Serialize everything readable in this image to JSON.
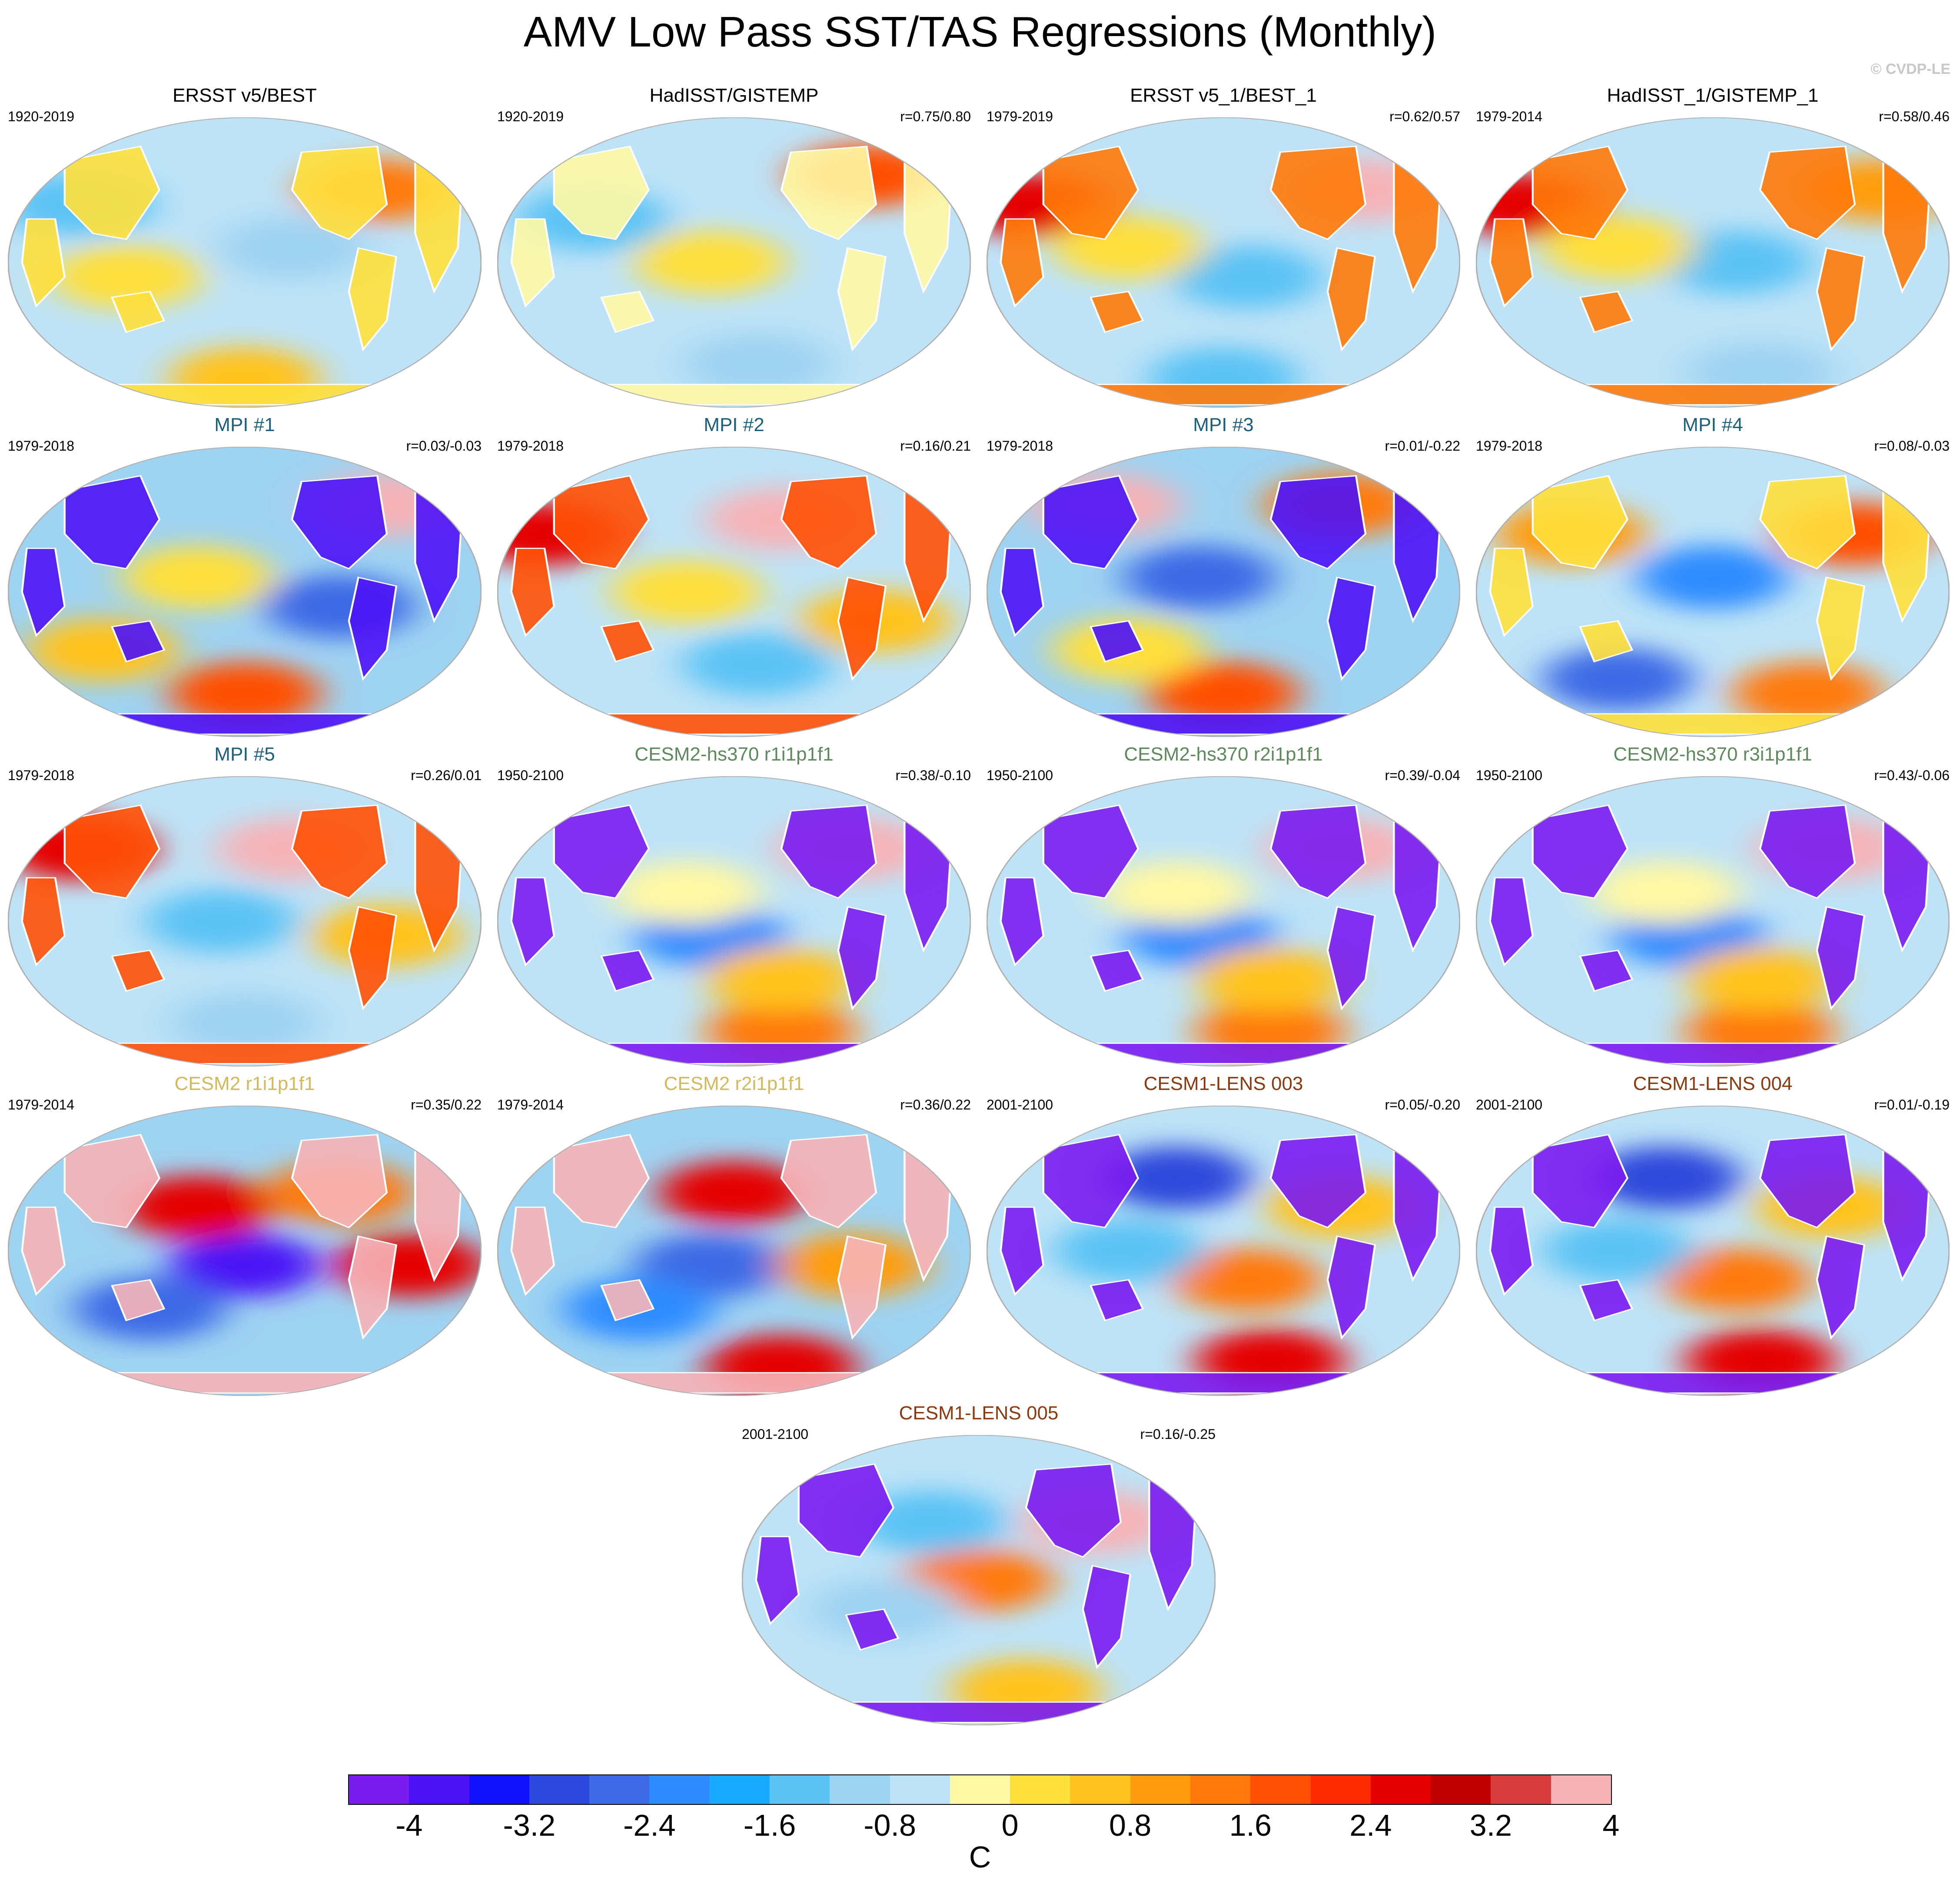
{
  "title": "AMV Low Pass SST/TAS Regressions (Monthly)",
  "copyright": "© CVDP-LE",
  "palette": [
    "#7a1bef",
    "#4c12f6",
    "#1010fa",
    "#2d48dc",
    "#3e6ae6",
    "#2f8cff",
    "#17aaff",
    "#5cc3f5",
    "#9fd3f2",
    "#bee3f7",
    "#fff8a4",
    "#ffe03c",
    "#ffc31f",
    "#ff9d0f",
    "#ff7a0a",
    "#ff5005",
    "#ff2c00",
    "#e50000",
    "#c00000",
    "#d83c3c",
    "#f6b4b8"
  ],
  "colorbar": {
    "ticks": [
      "-4",
      "-3.2",
      "-2.4",
      "-1.6",
      "-0.8",
      "0",
      "0.8",
      "1.6",
      "2.4",
      "3.2",
      "4"
    ],
    "units": "C"
  },
  "panels": [
    {
      "title": "ERSST v5/BEST",
      "period": "1920-2019",
      "corr": "",
      "title_color": "#000000",
      "ocean": "#bee3f7",
      "land": "#ffe03c",
      "blobs": [
        [
          0.25,
          0.55,
          "#ffe03c"
        ],
        [
          0.78,
          0.25,
          "#ff7a0a"
        ],
        [
          0.6,
          0.45,
          "#9fd3f2"
        ],
        [
          0.15,
          0.3,
          "#5cc3f5"
        ],
        [
          0.5,
          0.9,
          "#ffc31f"
        ]
      ]
    },
    {
      "title": "HadISST/GISTEMP",
      "period": "1920-2019",
      "corr": "r=0.75/0.80",
      "title_color": "#000000",
      "ocean": "#bee3f7",
      "land": "#fff8a4",
      "blobs": [
        [
          0.45,
          0.5,
          "#ffe03c"
        ],
        [
          0.78,
          0.2,
          "#ff5005"
        ],
        [
          0.2,
          0.35,
          "#5cc3f5"
        ],
        [
          0.55,
          0.85,
          "#9fd3f2"
        ]
      ]
    },
    {
      "title": "ERSST v5_1/BEST_1",
      "period": "1979-2019",
      "corr": "r=0.62/0.57",
      "title_color": "#000000",
      "ocean": "#bee3f7",
      "land": "#ff7a0a",
      "blobs": [
        [
          0.1,
          0.3,
          "#e50000"
        ],
        [
          0.55,
          0.55,
          "#5cc3f5"
        ],
        [
          0.8,
          0.25,
          "#f6b4b8"
        ],
        [
          0.3,
          0.45,
          "#ffe03c"
        ],
        [
          0.5,
          0.9,
          "#5cc3f5"
        ]
      ]
    },
    {
      "title": "HadISST_1/GISTEMP_1",
      "period": "1979-2014",
      "corr": "r=0.58/0.46",
      "title_color": "#000000",
      "ocean": "#bee3f7",
      "land": "#ff7a0a",
      "blobs": [
        [
          0.1,
          0.3,
          "#e50000"
        ],
        [
          0.55,
          0.5,
          "#5cc3f5"
        ],
        [
          0.85,
          0.25,
          "#ff9d0f"
        ],
        [
          0.3,
          0.45,
          "#ffe03c"
        ],
        [
          0.6,
          0.88,
          "#9fd3f2"
        ]
      ]
    },
    {
      "title": "MPI #1",
      "period": "1979-2018",
      "corr": "r=0.03/-0.03",
      "title_color": "#1c5f7c",
      "ocean": "#9fd3f2",
      "land": "#4c12f6",
      "blobs": [
        [
          0.4,
          0.45,
          "#ffe03c"
        ],
        [
          0.5,
          0.85,
          "#ff5005"
        ],
        [
          0.8,
          0.2,
          "#f6b4b8"
        ],
        [
          0.7,
          0.55,
          "#3e6ae6"
        ],
        [
          0.2,
          0.7,
          "#ffc31f"
        ]
      ]
    },
    {
      "title": "MPI #2",
      "period": "1979-2018",
      "corr": "r=0.16/0.21",
      "title_color": "#1c5f7c",
      "ocean": "#bee3f7",
      "land": "#ff5005",
      "blobs": [
        [
          0.6,
          0.25,
          "#f6b4b8"
        ],
        [
          0.1,
          0.3,
          "#e50000"
        ],
        [
          0.4,
          0.5,
          "#ffe03c"
        ],
        [
          0.55,
          0.75,
          "#5cc3f5"
        ],
        [
          0.8,
          0.6,
          "#ffc31f"
        ]
      ]
    },
    {
      "title": "MPI #3",
      "period": "1979-2018",
      "corr": "r=0.01/-0.22",
      "title_color": "#1c5f7c",
      "ocean": "#9fd3f2",
      "land": "#4c12f6",
      "blobs": [
        [
          0.25,
          0.2,
          "#f6b4b8"
        ],
        [
          0.45,
          0.45,
          "#3e6ae6"
        ],
        [
          0.5,
          0.85,
          "#ff5005"
        ],
        [
          0.75,
          0.2,
          "#ff7a0a"
        ],
        [
          0.3,
          0.7,
          "#ffe03c"
        ]
      ]
    },
    {
      "title": "MPI #4",
      "period": "1979-2018",
      "corr": "r=0.08/-0.03",
      "title_color": "#1c5f7c",
      "ocean": "#bee3f7",
      "land": "#ffe03c",
      "blobs": [
        [
          0.5,
          0.45,
          "#2f8cff"
        ],
        [
          0.2,
          0.3,
          "#ff9d0f"
        ],
        [
          0.7,
          0.85,
          "#ff7a0a"
        ],
        [
          0.8,
          0.3,
          "#ff5005"
        ],
        [
          0.3,
          0.8,
          "#3e6ae6"
        ]
      ]
    },
    {
      "title": "MPI #5",
      "period": "1979-2018",
      "corr": "r=0.26/0.01",
      "title_color": "#1c5f7c",
      "ocean": "#bee3f7",
      "land": "#ff5005",
      "blobs": [
        [
          0.15,
          0.25,
          "#e50000"
        ],
        [
          0.6,
          0.25,
          "#f6b4b8"
        ],
        [
          0.45,
          0.5,
          "#5cc3f5"
        ],
        [
          0.8,
          0.55,
          "#ffc31f"
        ],
        [
          0.5,
          0.85,
          "#9fd3f2"
        ]
      ]
    },
    {
      "title": "CESM2-hs370 r1i1p1f1",
      "period": "1950-2100",
      "corr": "r=0.38/-0.10",
      "title_color": "#5c8a5c",
      "ocean": "#bee3f7",
      "land": "#7a1bef",
      "blobs": [
        [
          0.45,
          0.55,
          "#2f8cff"
        ],
        [
          0.4,
          0.4,
          "#fff8a4"
        ],
        [
          0.6,
          0.88,
          "#ff7a0a"
        ],
        [
          0.75,
          0.25,
          "#f6b4b8"
        ],
        [
          0.6,
          0.7,
          "#ffc31f"
        ]
      ]
    },
    {
      "title": "CESM2-hs370 r2i1p1f1",
      "period": "1950-2100",
      "corr": "r=0.39/-0.04",
      "title_color": "#5c8a5c",
      "ocean": "#bee3f7",
      "land": "#7a1bef",
      "blobs": [
        [
          0.45,
          0.55,
          "#2f8cff"
        ],
        [
          0.4,
          0.4,
          "#fff8a4"
        ],
        [
          0.6,
          0.88,
          "#ff7a0a"
        ],
        [
          0.75,
          0.25,
          "#f6b4b8"
        ],
        [
          0.6,
          0.7,
          "#ffc31f"
        ]
      ]
    },
    {
      "title": "CESM2-hs370 r3i1p1f1",
      "period": "1950-2100",
      "corr": "r=0.43/-0.06",
      "title_color": "#5c8a5c",
      "ocean": "#bee3f7",
      "land": "#7a1bef",
      "blobs": [
        [
          0.45,
          0.55,
          "#2f8cff"
        ],
        [
          0.4,
          0.4,
          "#fff8a4"
        ],
        [
          0.6,
          0.88,
          "#ff7a0a"
        ],
        [
          0.75,
          0.25,
          "#f6b4b8"
        ],
        [
          0.6,
          0.7,
          "#ffc31f"
        ]
      ]
    },
    {
      "title": "CESM2 r1i1p1f1",
      "period": "1979-2014",
      "corr": "r=0.35/0.22",
      "title_color": "#d4b95a",
      "ocean": "#9fd3f2",
      "land": "#f6b4b8",
      "blobs": [
        [
          0.5,
          0.55,
          "#4c12f6"
        ],
        [
          0.4,
          0.35,
          "#e50000"
        ],
        [
          0.7,
          0.3,
          "#ff7a0a"
        ],
        [
          0.3,
          0.7,
          "#3e6ae6"
        ],
        [
          0.85,
          0.55,
          "#e50000"
        ]
      ]
    },
    {
      "title": "CESM2 r2i1p1f1",
      "period": "1979-2014",
      "corr": "r=0.36/0.22",
      "title_color": "#d4b95a",
      "ocean": "#9fd3f2",
      "land": "#f6b4b8",
      "blobs": [
        [
          0.45,
          0.55,
          "#3e6ae6"
        ],
        [
          0.5,
          0.3,
          "#e50000"
        ],
        [
          0.6,
          0.9,
          "#e50000"
        ],
        [
          0.3,
          0.7,
          "#2f8cff"
        ],
        [
          0.75,
          0.55,
          "#ff9d0f"
        ]
      ]
    },
    {
      "title": "CESM1-LENS 003",
      "period": "2001-2100",
      "corr": "r=0.05/-0.20",
      "title_color": "#8b3a0f",
      "ocean": "#bee3f7",
      "land": "#7a1bef",
      "blobs": [
        [
          0.55,
          0.6,
          "#ff7a0a"
        ],
        [
          0.4,
          0.25,
          "#2d48dc"
        ],
        [
          0.6,
          0.88,
          "#e50000"
        ],
        [
          0.3,
          0.5,
          "#5cc3f5"
        ],
        [
          0.75,
          0.35,
          "#ffc31f"
        ]
      ]
    },
    {
      "title": "CESM1-LENS 004",
      "period": "2001-2100",
      "corr": "r=0.01/-0.19",
      "title_color": "#8b3a0f",
      "ocean": "#bee3f7",
      "land": "#7a1bef",
      "blobs": [
        [
          0.55,
          0.6,
          "#ff7a0a"
        ],
        [
          0.4,
          0.25,
          "#2d48dc"
        ],
        [
          0.6,
          0.88,
          "#e50000"
        ],
        [
          0.3,
          0.5,
          "#5cc3f5"
        ],
        [
          0.75,
          0.35,
          "#ffc31f"
        ]
      ]
    },
    {
      "title": "CESM1-LENS 005",
      "period": "2001-2100",
      "corr": "r=0.16/-0.25",
      "title_color": "#8b3a0f",
      "ocean": "#bee3f7",
      "land": "#7a1bef",
      "blobs": [
        [
          0.5,
          0.5,
          "#ff7a0a"
        ],
        [
          0.4,
          0.3,
          "#5cc3f5"
        ],
        [
          0.6,
          0.88,
          "#ffc31f"
        ],
        [
          0.3,
          0.6,
          "#9fd3f2"
        ],
        [
          0.75,
          0.3,
          "#f6b4b8"
        ]
      ]
    }
  ]
}
